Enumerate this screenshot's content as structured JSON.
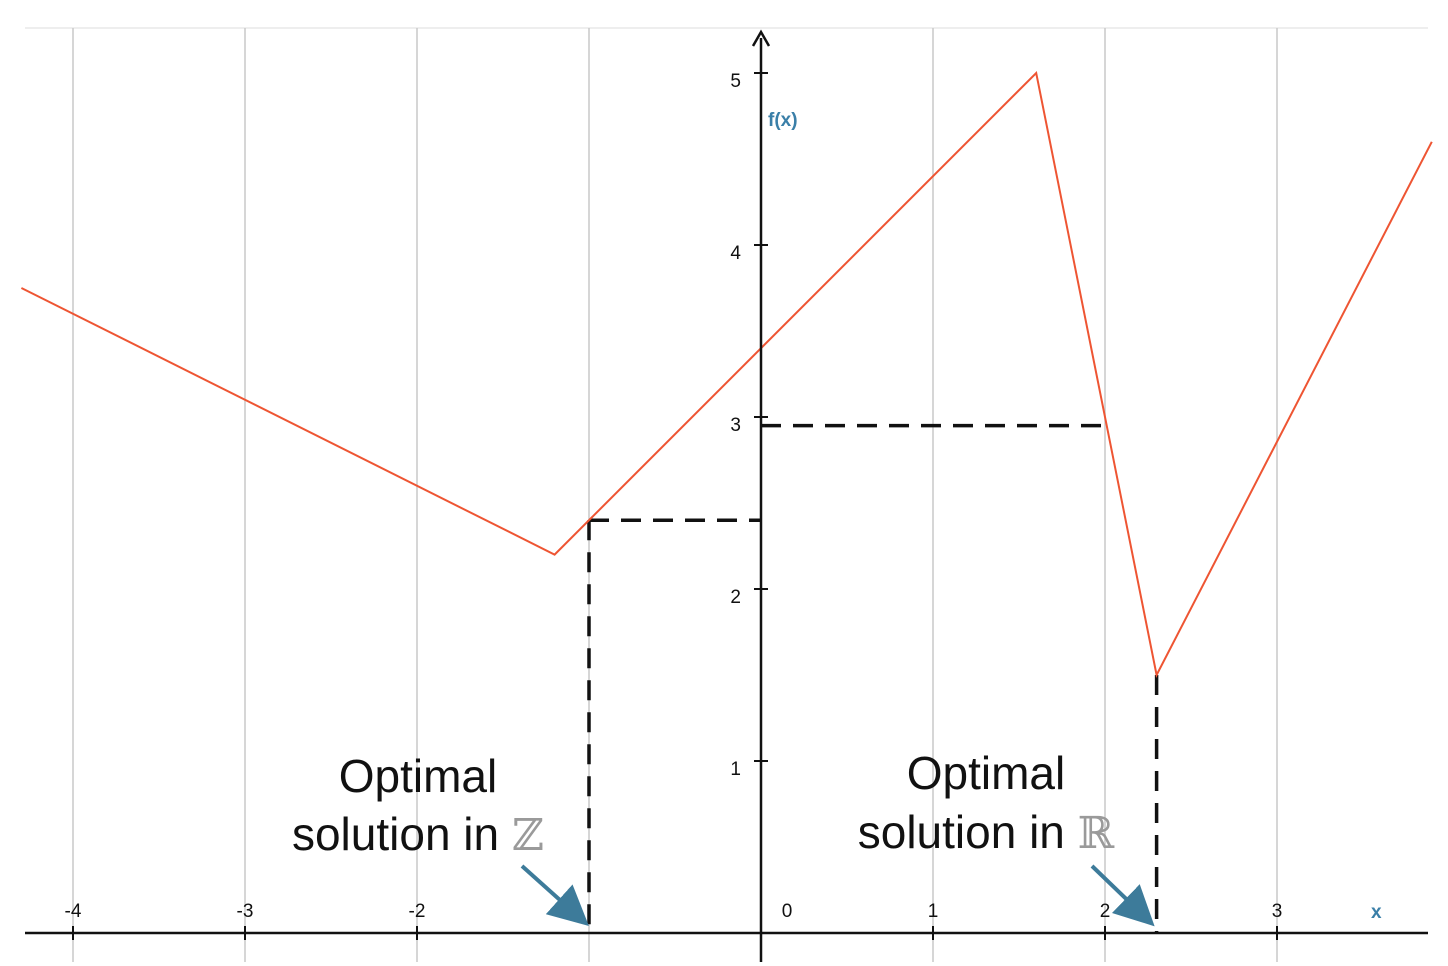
{
  "chart_data": {
    "type": "line",
    "title": "",
    "xlabel": "x",
    "ylabel": "f(x)",
    "xlim": [
      -4.3,
      3.9
    ],
    "ylim": [
      -0.15,
      5.3
    ],
    "x_ticks": [
      -4,
      -3,
      -2,
      0,
      1,
      2,
      3
    ],
    "x_tick_labels": [
      "-4",
      "-3",
      "-2",
      "0",
      "1",
      "2",
      "3"
    ],
    "y_ticks": [
      1,
      2,
      3,
      4,
      5
    ],
    "y_tick_labels": [
      "1",
      "2",
      "3",
      "4",
      "5"
    ],
    "grid": "vertical lines at integer x",
    "colors": {
      "series": "#ee5533",
      "axis_label": "#3a7fa8",
      "annotation_arrow": "#3d7b9a",
      "grid": "#cccccc"
    },
    "series": [
      {
        "x": [
          -4.3,
          -1.2,
          1.6,
          2.3,
          3.9
        ],
        "y": [
          3.75,
          2.2,
          5.0,
          1.5,
          4.6
        ]
      }
    ],
    "reference_lines": [
      {
        "kind": "drop",
        "x": -1,
        "y": 2.4
      },
      {
        "kind": "drop",
        "x": 2.3,
        "y": 1.5
      },
      {
        "kind": "level",
        "x": 2,
        "y": 2.95
      }
    ],
    "annotations": [
      {
        "line1": "Optimal",
        "line2_text": "solution in ",
        "symbol": "ℤ",
        "points_to_x": -1
      },
      {
        "line1": "Optimal",
        "line2_text": "solution in ",
        "symbol": "ℝ",
        "points_to_x": 2.3
      }
    ]
  }
}
